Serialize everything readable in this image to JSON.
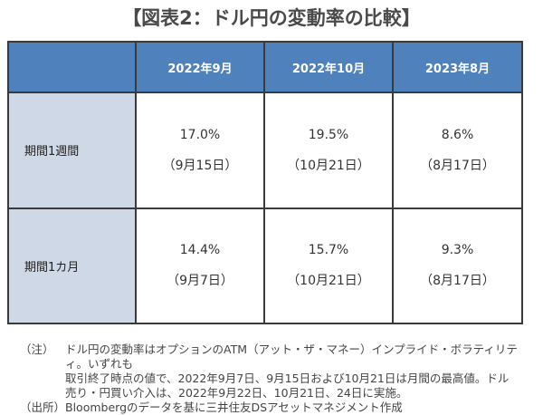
{
  "title": "【図表2：ドル円の変動率の比較】",
  "table": {
    "columns": [
      "",
      "2022年9月",
      "2022年10月",
      "2023年8月"
    ],
    "rows": [
      {
        "label": "期間1週間",
        "cells": [
          {
            "value": "17.0%",
            "date": "（9月15日）"
          },
          {
            "value": "19.5%",
            "date": "（10月21日）"
          },
          {
            "value": "8.6%",
            "date": "（8月17日）"
          }
        ]
      },
      {
        "label": "期間1カ月",
        "cells": [
          {
            "value": "14.4%",
            "date": "（9月7日）"
          },
          {
            "value": "15.7%",
            "date": "（10月21日）"
          },
          {
            "value": "9.3%",
            "date": "（8月17日）"
          }
        ]
      }
    ]
  },
  "notes": {
    "note_label": "（注）",
    "note_lines": [
      "ドル円の変動率はオプションのATM（アット・ザ・マネー）インプライド・ボラティリティ。いずれも",
      "取引終了時点の値で、2022年9月7日、9月15日および10月21日は月間の最高値。ドル",
      "売り・円買い介入は、2022年9月22日、10月21日、24日に実施。"
    ],
    "source_label": "（出所）",
    "source_text": "Bloombergのデータを基に三井住友DSアセットマネジメント作成"
  },
  "colors": {
    "header_bg": "#4f81bd",
    "rowhead_bg": "#cfd8e6",
    "border": "#3a3a3a"
  }
}
